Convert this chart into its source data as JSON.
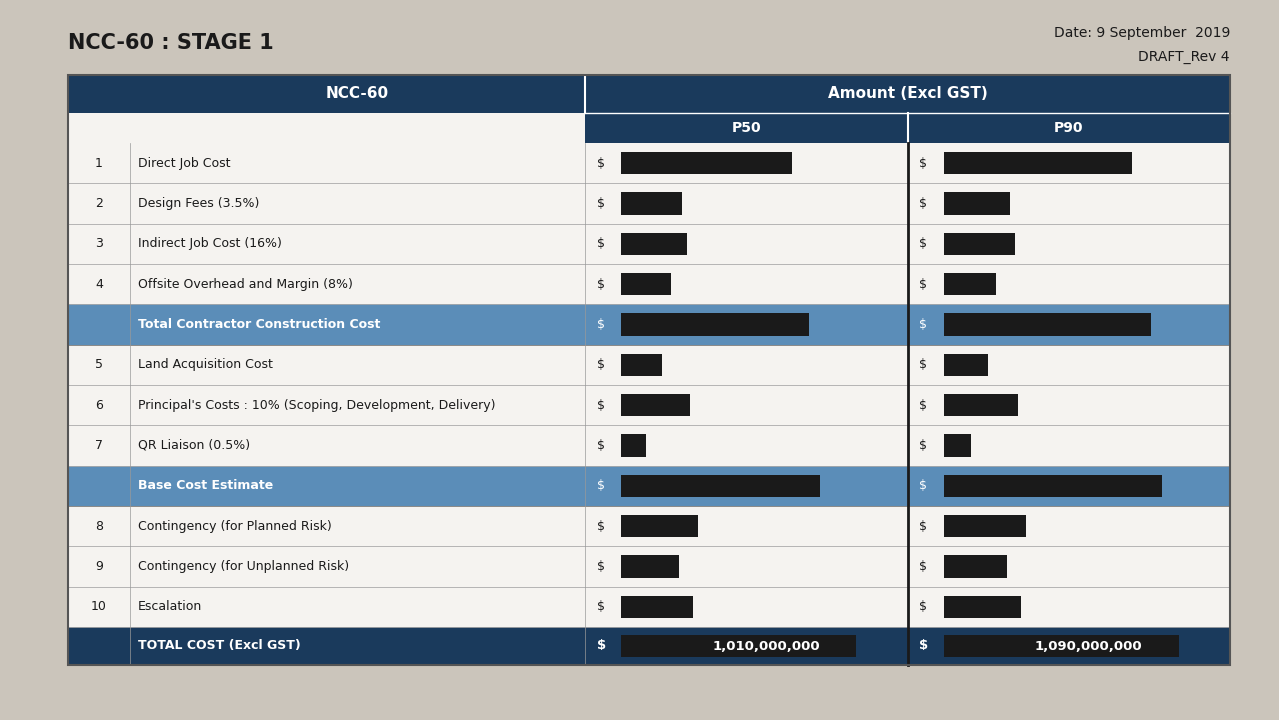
{
  "title": "NCC-60 : STAGE 1",
  "date_line1": "Date: 9 September  2019",
  "date_line2": "DRAFT_Rev 4",
  "header_col1": "NCC-60",
  "header_col2": "Amount (Excl GST)",
  "subheader_p50": "P50",
  "subheader_p90": "P90",
  "rows": [
    {
      "num": "1",
      "label": "Direct Job Cost",
      "highlight": false,
      "total": false
    },
    {
      "num": "2",
      "label": "Design Fees (3.5%)",
      "highlight": false,
      "total": false
    },
    {
      "num": "3",
      "label": "Indirect Job Cost (16%)",
      "highlight": false,
      "total": false
    },
    {
      "num": "4",
      "label": "Offsite Overhead and Margin (8%)",
      "highlight": false,
      "total": false
    },
    {
      "num": "",
      "label": "Total Contractor Construction Cost",
      "highlight": true,
      "total": false
    },
    {
      "num": "5",
      "label": "Land Acquisition Cost",
      "highlight": false,
      "total": false
    },
    {
      "num": "6",
      "label": "Principal's Costs : 10% (Scoping, Development, Delivery)",
      "highlight": false,
      "total": false
    },
    {
      "num": "7",
      "label": "QR Liaison (0.5%)",
      "highlight": false,
      "total": false
    },
    {
      "num": "",
      "label": "Base Cost Estimate",
      "highlight": true,
      "total": false
    },
    {
      "num": "8",
      "label": "Contingency (for Planned Risk)",
      "highlight": false,
      "total": false
    },
    {
      "num": "9",
      "label": "Contingency (for Unplanned Risk)",
      "highlight": false,
      "total": false
    },
    {
      "num": "10",
      "label": "Escalation",
      "highlight": false,
      "total": false
    },
    {
      "num": "",
      "label": "TOTAL COST (Excl GST)",
      "highlight": false,
      "total": true
    }
  ],
  "total_row_p50": "1,010,000,000",
  "total_row_p90": "1,090,000,000",
  "bar_data_p50": [
    0.62,
    0.22,
    0.24,
    0.18,
    0.68,
    0.15,
    0.25,
    0.09,
    0.72,
    0.28,
    0.21,
    0.26,
    1.0
  ],
  "bar_data_p90": [
    0.68,
    0.24,
    0.26,
    0.19,
    0.75,
    0.16,
    0.27,
    0.1,
    0.79,
    0.3,
    0.23,
    0.28,
    1.0
  ],
  "header_navy": "#1a3a5c",
  "highlight_blue": "#5b8db8",
  "total_navy": "#1a3a5c",
  "bar_color": "#1a1a1a",
  "row_line_color": "#888888",
  "bg_color": "#cbc5bb",
  "table_bg": "#f0eeeb",
  "white_row_bg": "#f5f3f0",
  "text_dark": "#1a1a1a",
  "divider_black": "#1a1a1a"
}
